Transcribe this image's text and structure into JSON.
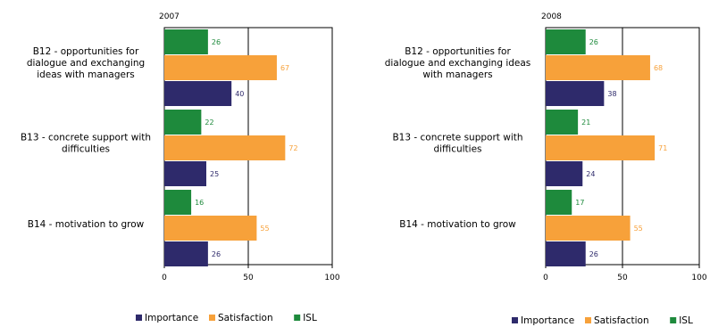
{
  "colors": {
    "Importance": "#2e2a6b",
    "Satisfaction": "#f7a13a",
    "ISL": "#1e8a3c"
  },
  "chart_data": [
    {
      "type": "bar",
      "orientation": "horizontal",
      "title": "2007",
      "categories": [
        "B12 - opportunities for dialogue and exchanging ideas with managers",
        "B13 - concrete support with difficulties",
        "B14 - motivation to grow"
      ],
      "category_lines": [
        [
          "B12 - opportunities for",
          "dialogue and exchanging",
          "ideas with managers"
        ],
        [
          "B13 - concrete support with",
          "difficulties"
        ],
        [
          "B14 - motivation to grow"
        ]
      ],
      "series": [
        {
          "name": "ISL",
          "values": [
            26,
            22,
            16
          ]
        },
        {
          "name": "Satisfaction",
          "values": [
            67,
            72,
            55
          ]
        },
        {
          "name": "Importance",
          "values": [
            40,
            25,
            26
          ]
        }
      ],
      "xlim": [
        0,
        100
      ],
      "xticks": [
        "0",
        "50",
        "100"
      ],
      "legend": [
        "Importance",
        "Satisfaction",
        "ISL"
      ],
      "legend_position": "bottom"
    },
    {
      "type": "bar",
      "orientation": "horizontal",
      "title": "2008",
      "categories": [
        "B12 - opportunities for dialogue and exchanging ideas with managers",
        "B13 - concrete support with difficulties",
        "B14 - motivation to grow"
      ],
      "category_lines": [
        [
          "B12 - opportunities for",
          "dialogue and exchanging ideas",
          "with managers"
        ],
        [
          "B13 - concrete support with",
          "difficulties"
        ],
        [
          "B14 - motivation to grow"
        ]
      ],
      "series": [
        {
          "name": "ISL",
          "values": [
            26,
            21,
            17
          ]
        },
        {
          "name": "Satisfaction",
          "values": [
            68,
            71,
            55
          ]
        },
        {
          "name": "Importance",
          "values": [
            38,
            24,
            26
          ]
        }
      ],
      "xlim": [
        0,
        100
      ],
      "xticks": [
        "0",
        "50",
        "100"
      ],
      "legend": [
        "Importance",
        "Satisfaction",
        "ISL"
      ],
      "legend_position": "bottom"
    }
  ]
}
